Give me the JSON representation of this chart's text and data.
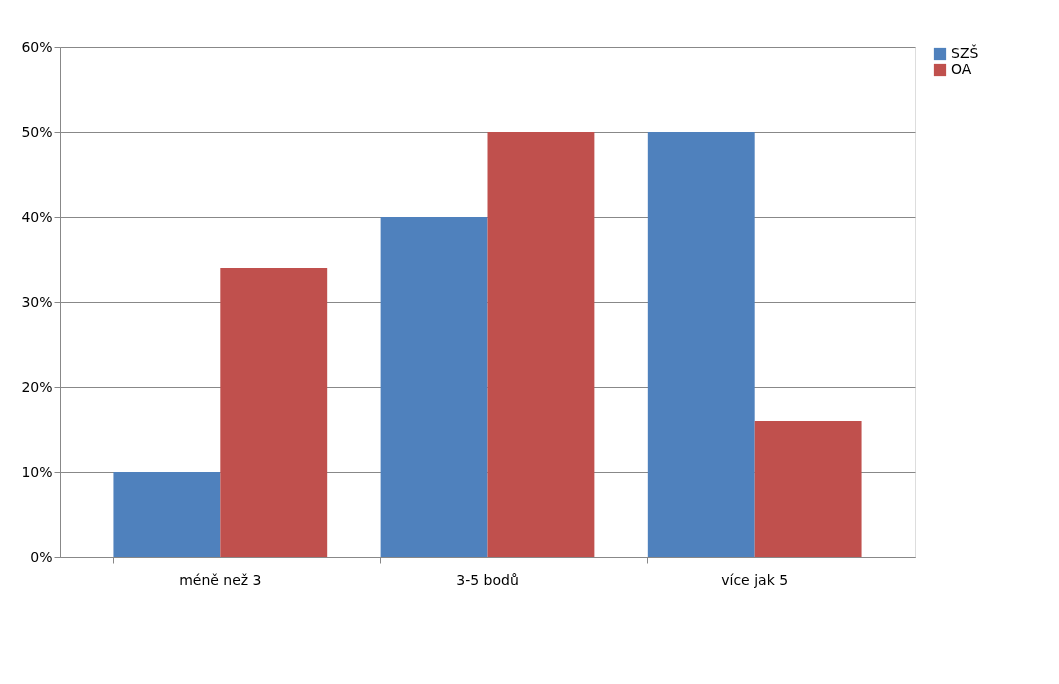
{
  "chart_data": {
    "type": "bar",
    "categories": [
      "méně než 3",
      "3-5 bodů",
      "více jak 5"
    ],
    "series": [
      {
        "name": "SZŠ",
        "color": "#4f81bd",
        "values": [
          10,
          40,
          50
        ]
      },
      {
        "name": "OA",
        "color": "#c0504d",
        "values": [
          34,
          50,
          16
        ]
      }
    ],
    "ylim": [
      0,
      60
    ],
    "yticks": [
      {
        "value": 0,
        "label": "0%"
      },
      {
        "value": 10,
        "label": "10%"
      },
      {
        "value": 20,
        "label": "20%"
      },
      {
        "value": 30,
        "label": "30%"
      },
      {
        "value": 40,
        "label": "40%"
      },
      {
        "value": 50,
        "label": "50%"
      },
      {
        "value": 60,
        "label": "60%"
      }
    ],
    "grid": "y",
    "legend": "right"
  }
}
